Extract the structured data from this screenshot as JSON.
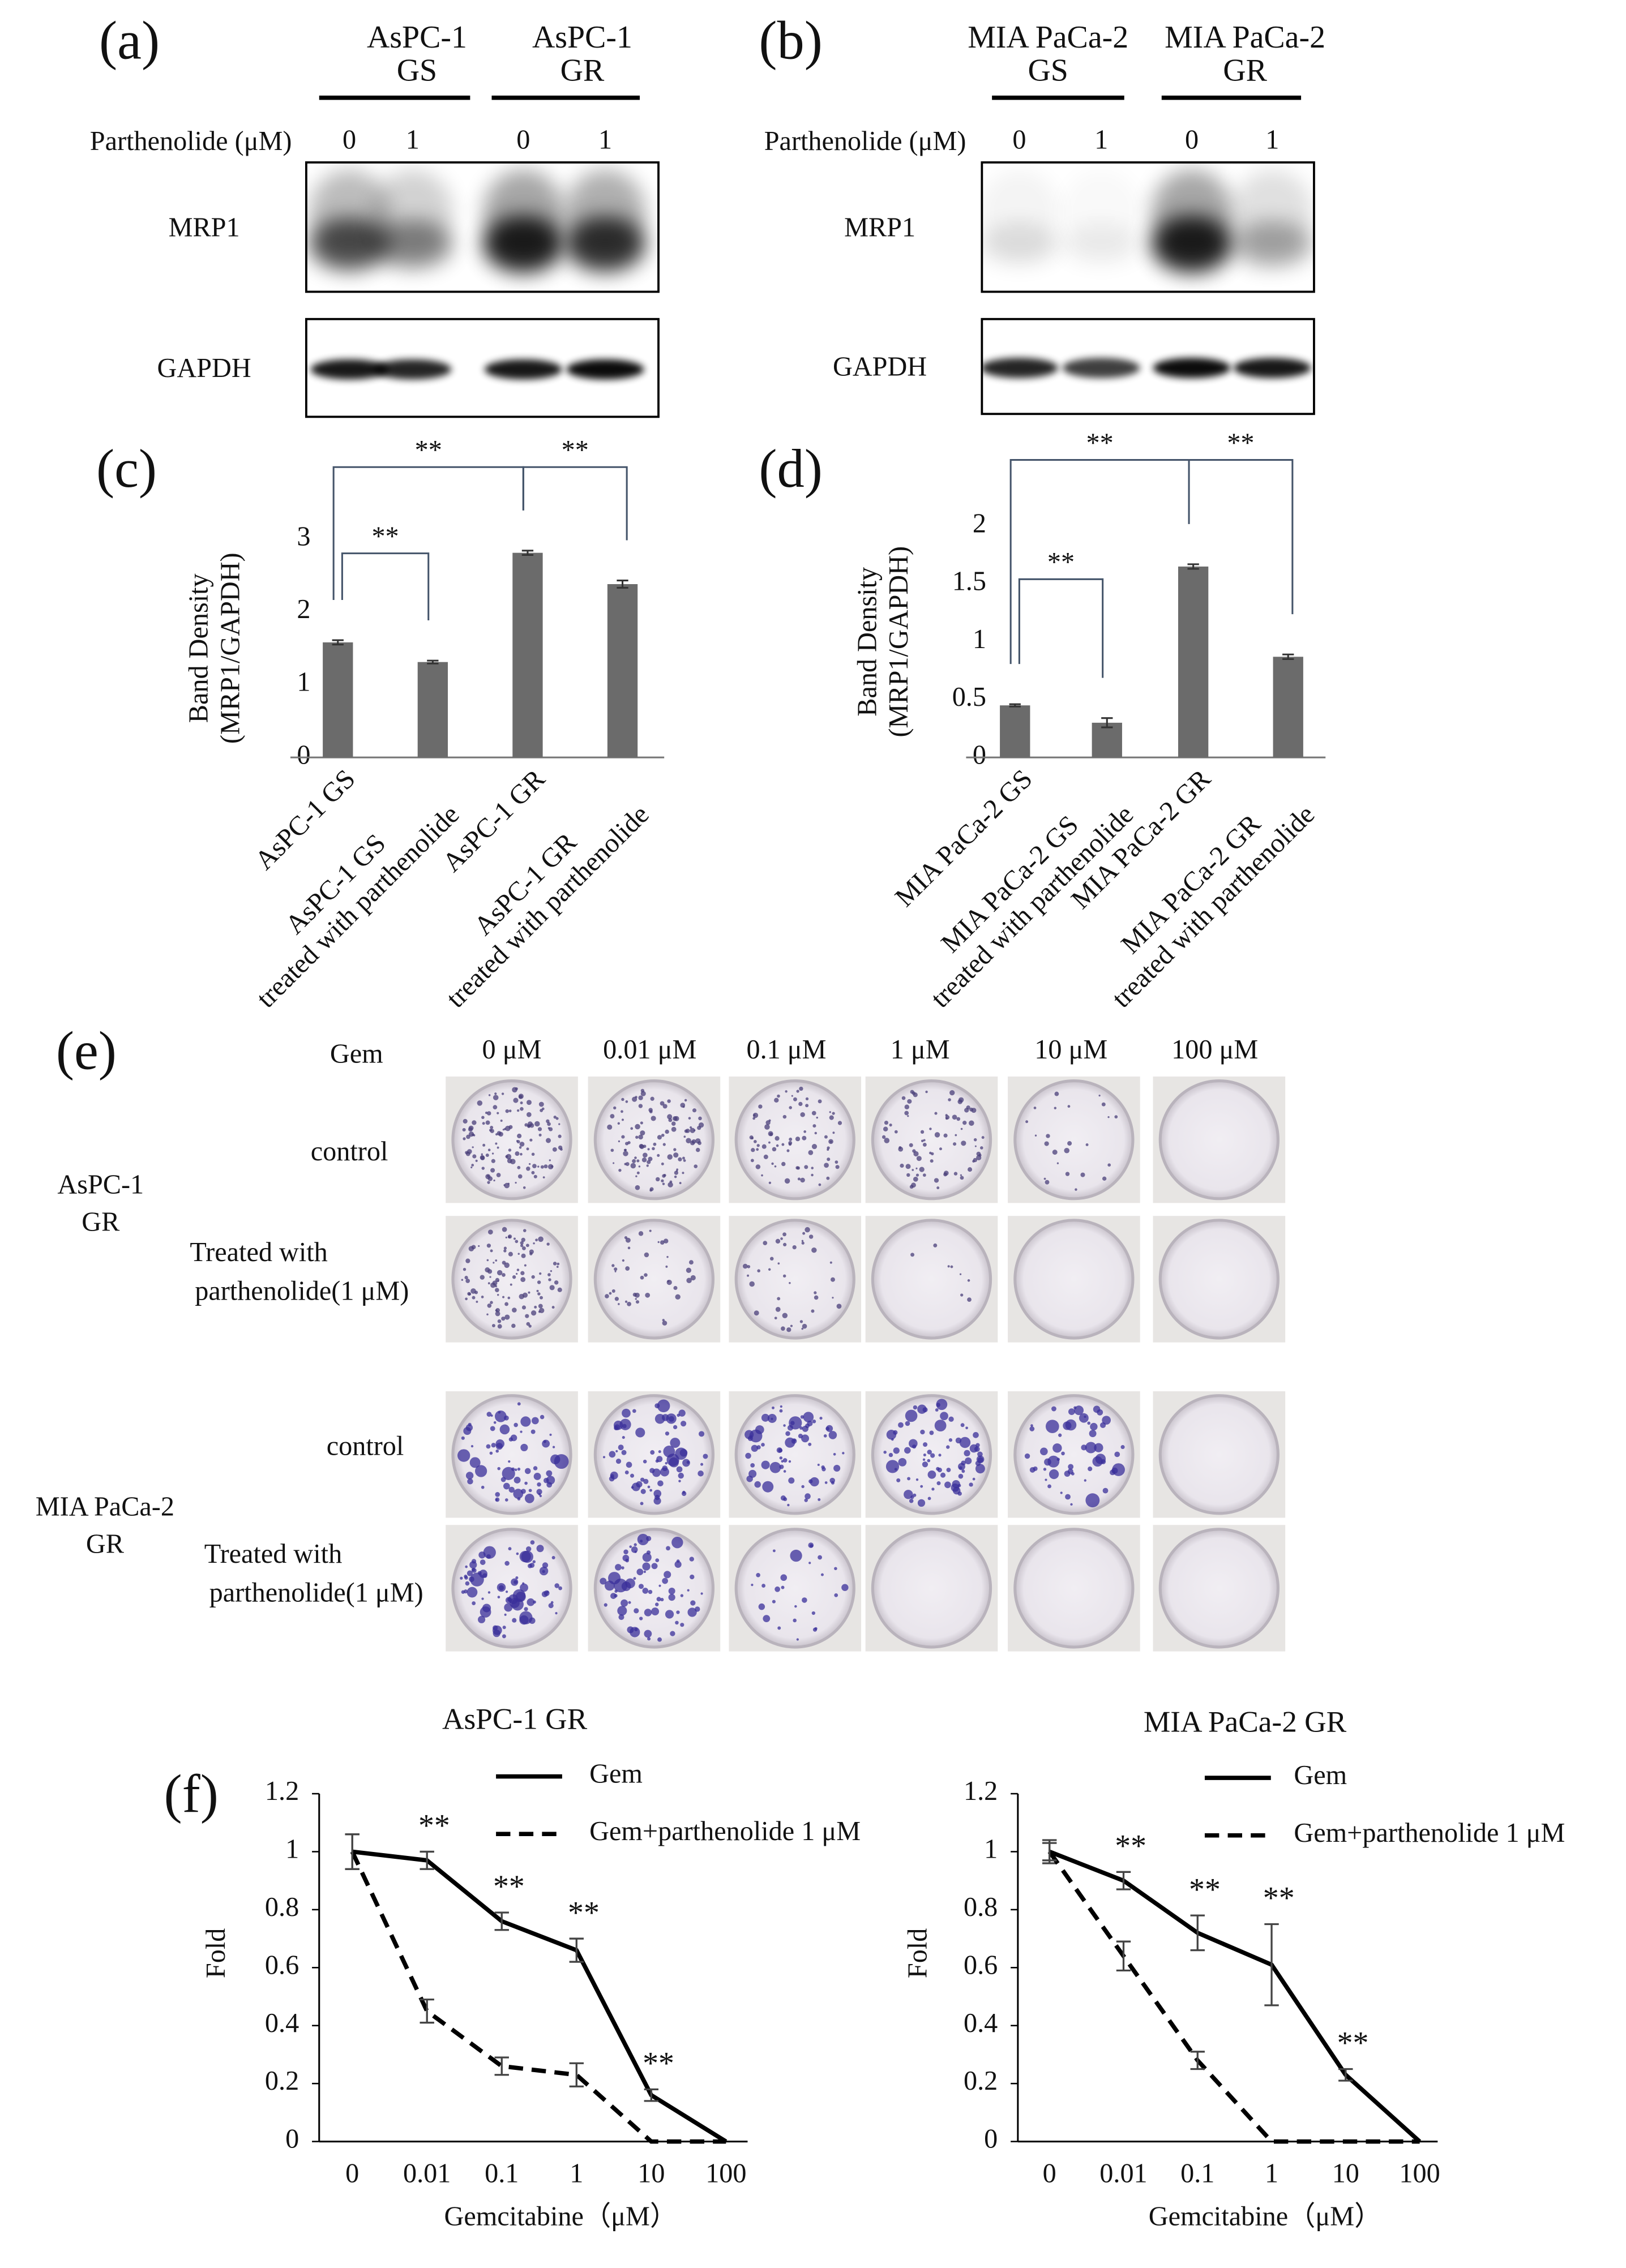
{
  "panel_labels": [
    "(a)",
    "(b)",
    "(c)",
    "(d)",
    "(e)",
    "(f)"
  ],
  "blots": [
    {
      "groups": [
        [
          "AsPC-1",
          "GS"
        ],
        [
          "AsPC-1",
          "GR"
        ]
      ],
      "treatment_label": "Parthenolide (μM)",
      "lanes": [
        "0",
        "1",
        "0",
        "1"
      ],
      "rows": [
        "MRP1",
        "GAPDH"
      ]
    },
    {
      "groups": [
        [
          "MIA PaCa-2",
          "GS"
        ],
        [
          "MIA PaCa-2",
          "GR"
        ]
      ],
      "treatment_label": "Parthenolide (μM)",
      "lanes": [
        "0",
        "1",
        "0",
        "1"
      ],
      "rows": [
        "MRP1",
        "GAPDH"
      ]
    }
  ],
  "chart_data": [
    {
      "type": "bar",
      "y_label": [
        "Band Density",
        "(MRP1/GAPDH)"
      ],
      "categories": [
        [
          "AsPC-1 GS"
        ],
        [
          "AsPC-1 GS",
          "treated with parthenolide"
        ],
        [
          "AsPC-1 GR"
        ],
        [
          "AsPC-1 GR",
          "treated with parthenolide"
        ]
      ],
      "values": [
        1.58,
        1.31,
        2.81,
        2.38
      ],
      "errors": [
        0.03,
        0.02,
        0.03,
        0.05
      ],
      "color": "#6b6b6b",
      "ylim": [
        0,
        3
      ],
      "yticks": [
        0,
        1,
        2,
        3
      ],
      "significance": [
        "**",
        "**",
        "**"
      ]
    },
    {
      "type": "bar",
      "y_label": [
        "Band Density",
        "(MRP1/GAPDH)"
      ],
      "categories": [
        [
          "MIA PaCa-2 GS"
        ],
        [
          "MIA PaCa-2 GS",
          "treated with parthenolide"
        ],
        [
          "MIA PaCa-2 GR"
        ],
        [
          "MIA PaCa-2 GR",
          "treated with parthenolide"
        ]
      ],
      "values": [
        0.45,
        0.3,
        1.65,
        0.87
      ],
      "errors": [
        0.01,
        0.04,
        0.02,
        0.02
      ],
      "color": "#6b6b6b",
      "ylim": [
        0,
        2
      ],
      "yticks": [
        0,
        0.5,
        1,
        1.5,
        2
      ],
      "significance": [
        "**",
        "**",
        "**"
      ]
    },
    {
      "type": "line",
      "title": "AsPC-1 GR",
      "x_label": "Gemcitabine（μM）",
      "y_label": "Fold",
      "categories": [
        "0",
        "0.01",
        "0.1",
        "1",
        "10",
        "100"
      ],
      "ylim": [
        0,
        1.2
      ],
      "yticks": [
        0,
        0.2,
        0.4,
        0.6,
        0.8,
        1,
        1.2
      ],
      "series": [
        {
          "name": "Gem",
          "color": "#000000",
          "dash": false,
          "values": [
            1,
            0.97,
            0.76,
            0.66,
            0.16,
            0
          ],
          "errors": [
            0.06,
            0.03,
            0.03,
            0.04,
            0.02,
            null
          ]
        },
        {
          "name": "Gem+parthenolide 1 μM",
          "color": "#000000",
          "dash": true,
          "values": [
            1,
            0.45,
            0.26,
            0.23,
            0,
            0
          ],
          "errors": [
            0.06,
            0.04,
            0.03,
            0.04,
            null,
            null
          ]
        }
      ],
      "annotations": [
        "**",
        "**",
        "**",
        "**"
      ]
    },
    {
      "type": "line",
      "title": "MIA PaCa-2 GR",
      "x_label": "Gemcitabine（μM）",
      "y_label": "Fold",
      "categories": [
        "0",
        "0.01",
        "0.1",
        "1",
        "10",
        "100"
      ],
      "ylim": [
        0,
        1.2
      ],
      "yticks": [
        0,
        0.2,
        0.4,
        0.6,
        0.8,
        1,
        1.2
      ],
      "series": [
        {
          "name": "Gem",
          "color": "#000000",
          "dash": false,
          "values": [
            1,
            0.9,
            0.72,
            0.61,
            0.23,
            0
          ],
          "errors": [
            0.04,
            0.03,
            0.06,
            0.14,
            0.02,
            null
          ]
        },
        {
          "name": "Gem+parthenolide 1 μM",
          "color": "#000000",
          "dash": true,
          "values": [
            1,
            0.64,
            0.28,
            0,
            0,
            0
          ],
          "errors": [
            0.03,
            0.05,
            0.03,
            null,
            null,
            null
          ]
        }
      ],
      "annotations": [
        "**",
        "**",
        "**",
        "**"
      ]
    }
  ],
  "colony_assay": {
    "drug_label": "Gem",
    "concentrations": [
      "0 μM",
      "0.01 μM",
      "0.1 μM",
      "1 μM",
      "10 μM",
      "100 μM"
    ],
    "groups": [
      {
        "name": [
          "AsPC-1",
          "GR"
        ],
        "rows": [
          [
            "control"
          ],
          [
            "Treated with",
            "parthenolide(1 μM)"
          ]
        ]
      },
      {
        "name": [
          "MIA PaCa-2",
          "GR"
        ],
        "rows": [
          [
            "control"
          ],
          [
            "Treated with",
            "parthenolide(1 μM)"
          ]
        ]
      }
    ]
  }
}
